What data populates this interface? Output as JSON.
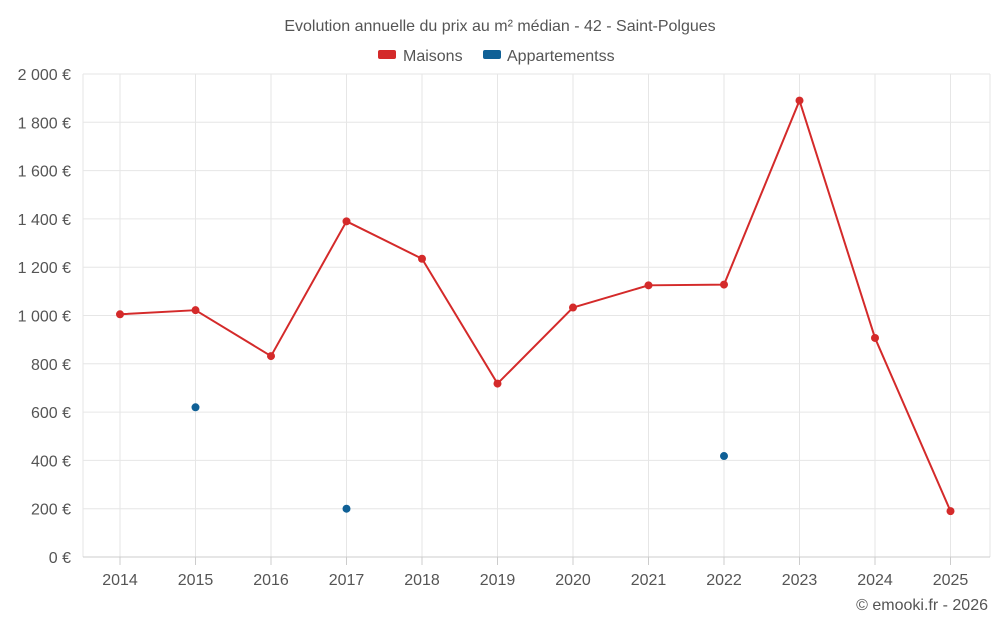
{
  "chart_data": {
    "type": "line",
    "title": "Evolution annuelle du prix au m² médian - 42 - Saint-Polgues",
    "categories": [
      "2014",
      "2015",
      "2016",
      "2017",
      "2018",
      "2019",
      "2020",
      "2021",
      "2022",
      "2023",
      "2024",
      "2025"
    ],
    "y_ticks": [
      0,
      200,
      400,
      600,
      800,
      1000,
      1200,
      1400,
      1600,
      1800,
      2000
    ],
    "y_tick_labels": [
      "0 €",
      "200 €",
      "400 €",
      "600 €",
      "800 €",
      "1 000 €",
      "1 200 €",
      "1 400 €",
      "1 600 €",
      "1 800 €",
      "2 000 €"
    ],
    "ylim": [
      0,
      2000
    ],
    "grid": true,
    "legend_position": "top-center",
    "series": [
      {
        "name": "Maisons",
        "color": "#d42a2a",
        "line": true,
        "values": [
          1005,
          1022,
          832,
          1390,
          1235,
          718,
          1033,
          1125,
          1128,
          1890,
          907,
          190
        ]
      },
      {
        "name": "Appartementss",
        "color": "#0f6096",
        "line": false,
        "values": [
          null,
          620,
          null,
          200,
          null,
          null,
          null,
          null,
          418,
          null,
          null,
          null
        ]
      }
    ],
    "credit": "© emooki.fr - 2026"
  }
}
